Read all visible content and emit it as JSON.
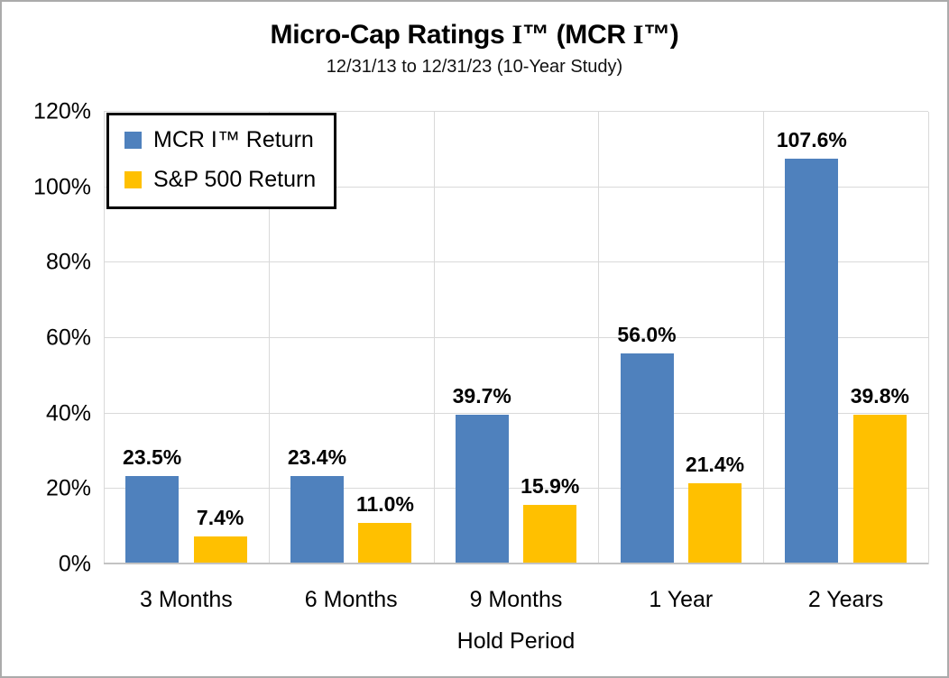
{
  "chart_data": {
    "type": "bar",
    "title": "Micro-Cap Ratings I™ (MCR I™)",
    "title_parts": [
      {
        "text": "Micro-Cap Ratings ",
        "serif": false
      },
      {
        "text": "I",
        "serif": true
      },
      {
        "text": "™ (MCR ",
        "serif": false
      },
      {
        "text": "I",
        "serif": true
      },
      {
        "text": "™)",
        "serif": false
      }
    ],
    "subtitle": "12/31/13 to 12/31/23 (10-Year Study)",
    "categories": [
      "3 Months",
      "6 Months",
      "9 Months",
      "1 Year",
      "2 Years"
    ],
    "series": [
      {
        "name": "MCR I™ Return",
        "color": "#4F81BD",
        "values": [
          23.5,
          23.4,
          39.7,
          56.0,
          107.6
        ],
        "labels": [
          "23.5%",
          "23.4%",
          "39.7%",
          "56.0%",
          "107.6%"
        ]
      },
      {
        "name": "S&P 500 Return",
        "color": "#FFC000",
        "values": [
          7.4,
          11.0,
          15.9,
          21.4,
          39.8
        ],
        "labels": [
          "7.4%",
          "11.0%",
          "15.9%",
          "21.4%",
          "39.8%"
        ]
      }
    ],
    "xlabel": "Hold Period",
    "ylabel": "",
    "ylim": [
      0,
      120
    ],
    "ytick_step": 20,
    "yticks": [
      "0%",
      "20%",
      "40%",
      "60%",
      "80%",
      "100%",
      "120%"
    ],
    "grid": true,
    "legend_position": "top-left"
  }
}
